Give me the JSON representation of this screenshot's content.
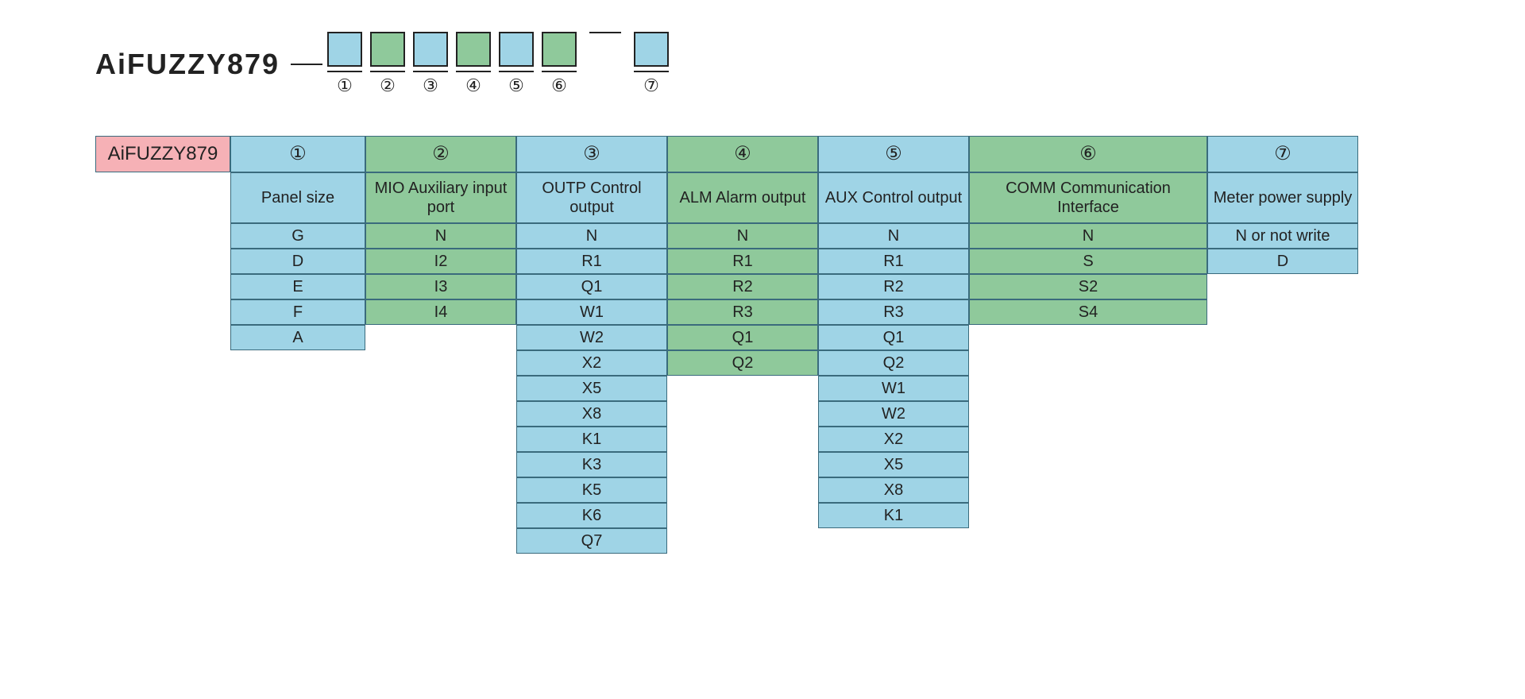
{
  "model_name": "AiFUZZY879",
  "colors": {
    "blue": "#9fd4e6",
    "green": "#8fc99b",
    "pink": "#f6b1b6",
    "border": "#3a6b7d",
    "text": "#222222",
    "background": "#ffffff"
  },
  "legend_boxes": [
    {
      "num": "①",
      "color": "blue"
    },
    {
      "num": "②",
      "color": "green"
    },
    {
      "num": "③",
      "color": "blue"
    },
    {
      "num": "④",
      "color": "green"
    },
    {
      "num": "⑤",
      "color": "blue"
    },
    {
      "num": "⑥",
      "color": "green"
    },
    {
      "num": "⑦",
      "color": "blue",
      "gap_before": true
    }
  ],
  "table": {
    "corner_label": "AiFUZZY879",
    "columns": [
      {
        "num": "①",
        "label": "Panel size",
        "color": "blue",
        "width": "w1",
        "data": [
          "G",
          "D",
          "E",
          "F",
          "A"
        ]
      },
      {
        "num": "②",
        "label": "MIO Auxiliary input port",
        "color": "green",
        "width": "w2",
        "data": [
          "N",
          "I2",
          "I3",
          "I4"
        ]
      },
      {
        "num": "③",
        "label": "OUTP  Control output",
        "color": "blue",
        "width": "w3",
        "data": [
          "N",
          "R1",
          "Q1",
          "W1",
          "W2",
          "X2",
          "X5",
          "X8",
          "K1",
          "K3",
          "K5",
          "K6",
          "Q7"
        ]
      },
      {
        "num": "④",
        "label": "ALM Alarm output",
        "color": "green",
        "width": "w4",
        "data": [
          "N",
          "R1",
          "R2",
          "R3",
          "Q1",
          "Q2"
        ]
      },
      {
        "num": "⑤",
        "label": "AUX Control output",
        "color": "blue",
        "width": "w5",
        "data": [
          "N",
          "R1",
          "R2",
          "R3",
          "Q1",
          "Q2",
          "W1",
          "W2",
          "X2",
          "X5",
          "X8",
          "K1"
        ]
      },
      {
        "num": "⑥",
        "label": "COMM Communication Interface",
        "color": "green",
        "width": "w6",
        "data": [
          "N",
          "S",
          "S2",
          "S4"
        ]
      },
      {
        "num": "⑦",
        "label": "Meter power supply",
        "color": "blue",
        "width": "w7",
        "data": [
          "N or not write",
          "D"
        ]
      }
    ]
  },
  "typography": {
    "title_fontsize": 36,
    "header_fontsize": 20,
    "data_fontsize": 20,
    "circled_fontsize": 24
  }
}
